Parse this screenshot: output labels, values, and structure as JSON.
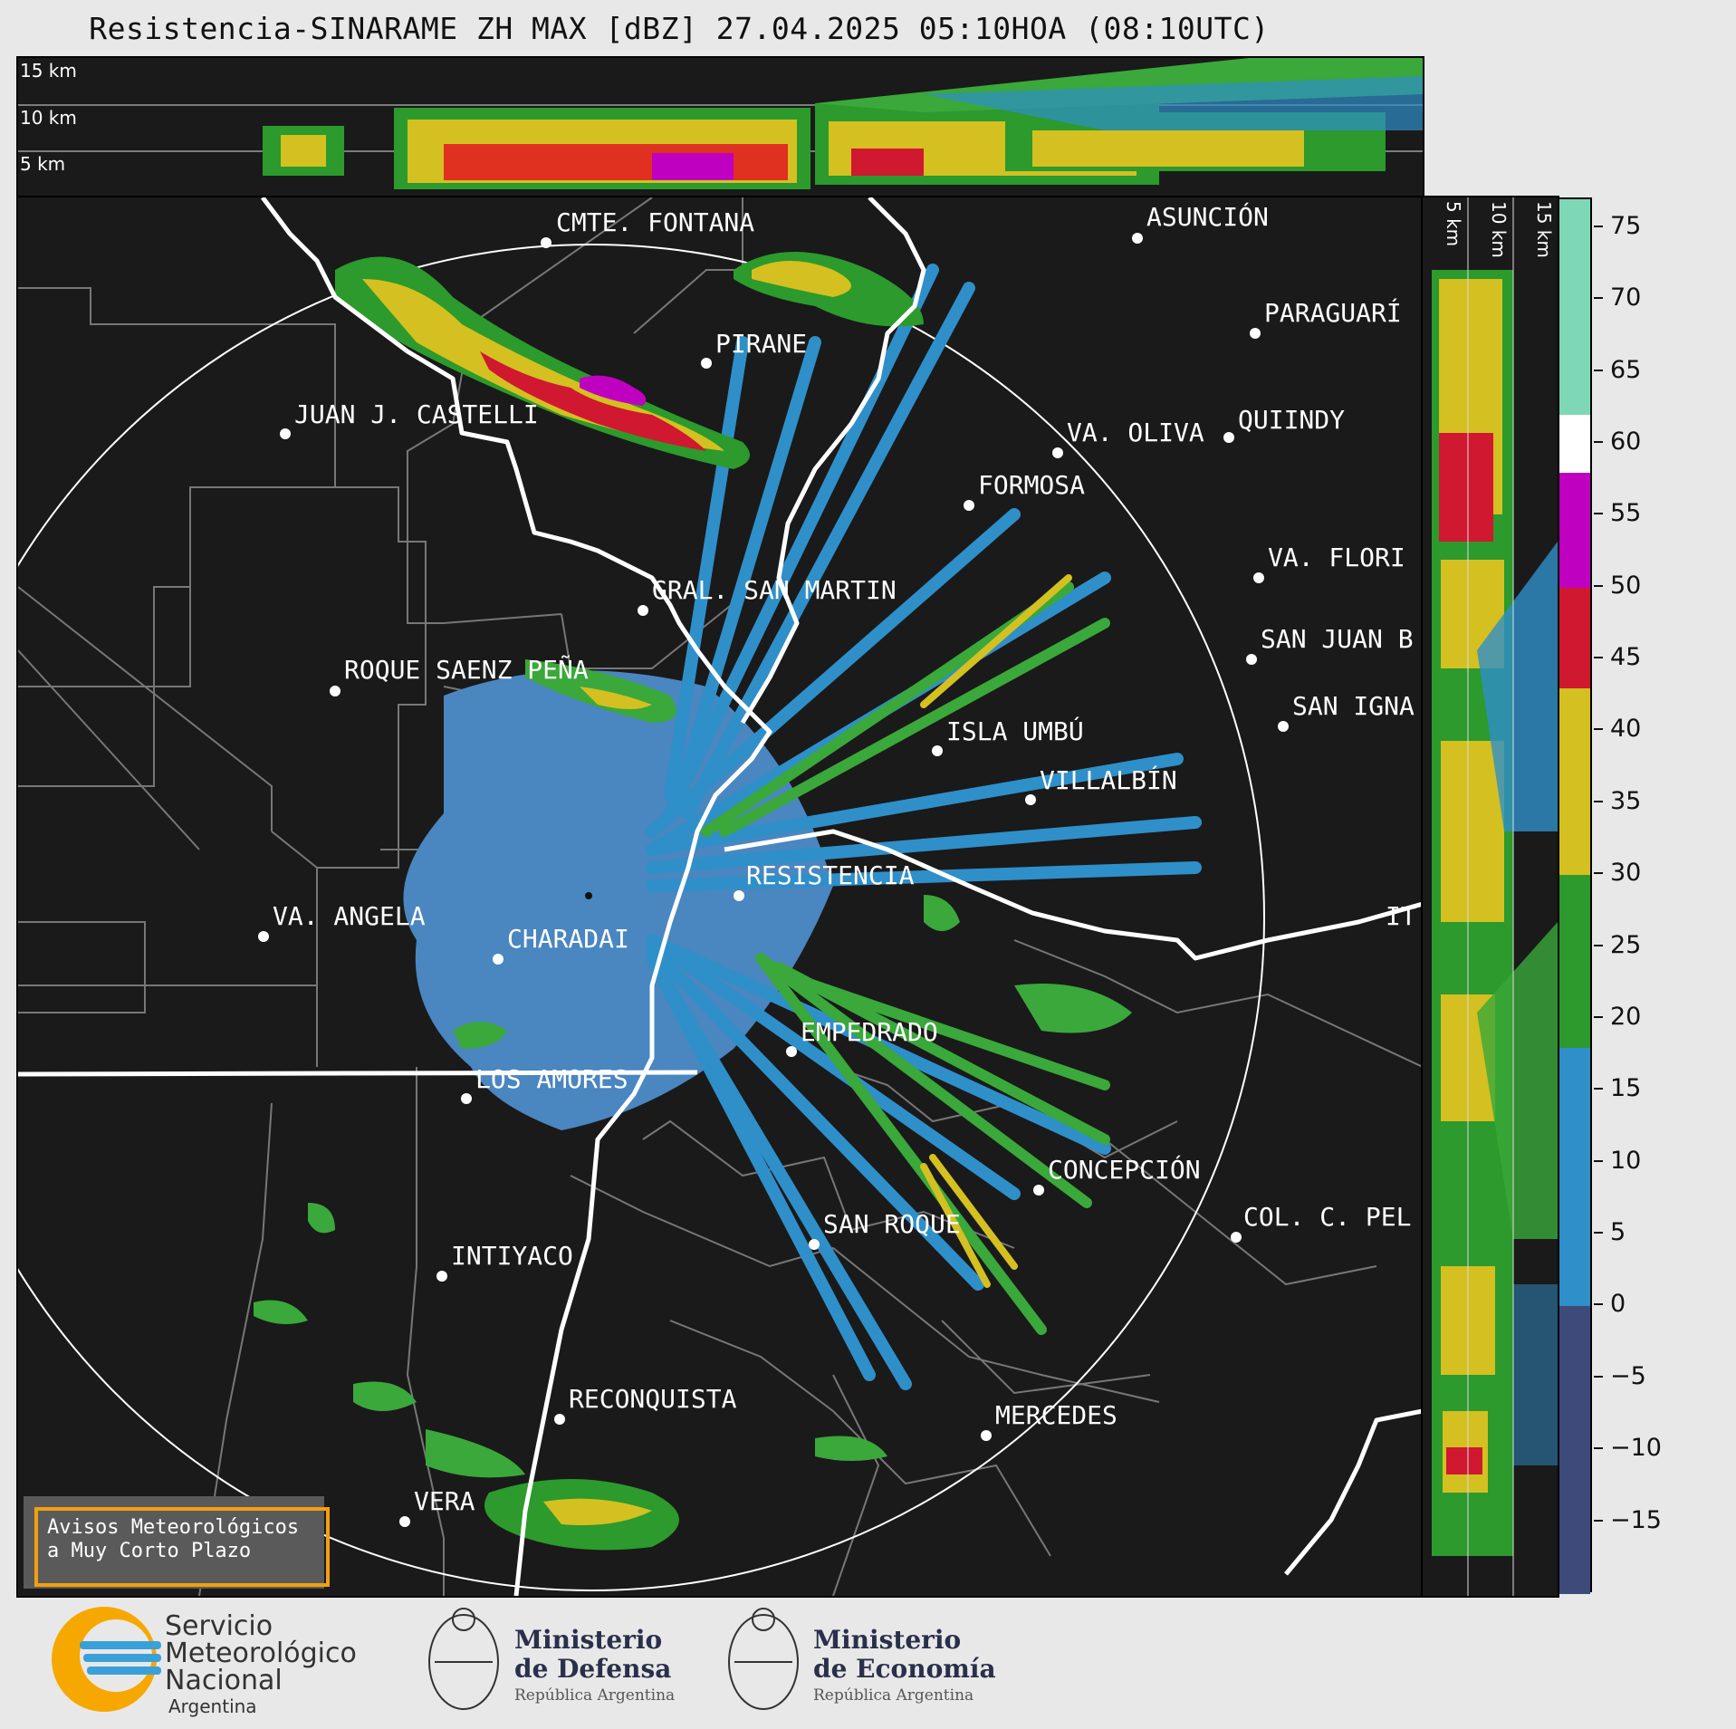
{
  "title": "Resistencia-SINARAME ZH MAX [dBZ] 27.04.2025 05:10HOA (08:10UTC)",
  "altitude_labels": {
    "top": [
      "15 km",
      "10 km",
      "5 km"
    ],
    "right": [
      "5 km",
      "10 km",
      "15 km"
    ]
  },
  "cities": [
    {
      "name": "CMTE. FONTANA"
    },
    {
      "name": "ASUNCIÓN"
    },
    {
      "name": "PARAGUARÍ"
    },
    {
      "name": "PIRANE"
    },
    {
      "name": "JUAN J. CASTELLI"
    },
    {
      "name": "QUIINDY"
    },
    {
      "name": "VA. OLIVA"
    },
    {
      "name": "FORMOSA"
    },
    {
      "name": "VA. FLORI"
    },
    {
      "name": "GRAL. SAN MARTIN"
    },
    {
      "name": "SAN JUAN B"
    },
    {
      "name": "ROQUE SAENZ PEÑA"
    },
    {
      "name": "SAN IGNA"
    },
    {
      "name": "ISLA UMBÚ"
    },
    {
      "name": "VILLALBÍN"
    },
    {
      "name": "RESISTENCIA"
    },
    {
      "name": "VA. ANGELA"
    },
    {
      "name": "CHARADAI"
    },
    {
      "name": "IT"
    },
    {
      "name": "EMPEDRADO"
    },
    {
      "name": "LOS AMORES"
    },
    {
      "name": "CONCEPCIÓN"
    },
    {
      "name": "COL. C. PEL"
    },
    {
      "name": "SAN ROQUE"
    },
    {
      "name": "INTIYACO"
    },
    {
      "name": "RECONQUISTA"
    },
    {
      "name": "MERCEDES"
    },
    {
      "name": "VERA"
    }
  ],
  "colorbar": {
    "unit": "dBZ",
    "range": [
      -20,
      77
    ],
    "ticks": [
      "75",
      "70",
      "65",
      "60",
      "55",
      "50",
      "45",
      "40",
      "35",
      "30",
      "25",
      "20",
      "15",
      "10",
      "5",
      "0",
      "−5",
      "−10",
      "−15"
    ],
    "tick_values": [
      75,
      70,
      65,
      60,
      55,
      50,
      45,
      40,
      35,
      30,
      25,
      20,
      15,
      10,
      5,
      0,
      -5,
      -10,
      -15
    ],
    "bands": [
      {
        "from": -20,
        "to": 0,
        "color": "#3d4a7a"
      },
      {
        "from": 0,
        "to": 18,
        "color": "#2f8fc9"
      },
      {
        "from": 18,
        "to": 30,
        "color": "#2c9a2c"
      },
      {
        "from": 30,
        "to": 43,
        "color": "#d4c020"
      },
      {
        "from": 43,
        "to": 50,
        "color": "#d01830"
      },
      {
        "from": 50,
        "to": 58,
        "color": "#c000c0"
      },
      {
        "from": 58,
        "to": 62,
        "color": "#ffffff"
      },
      {
        "from": 62,
        "to": 77,
        "color": "#7ed8b8"
      }
    ]
  },
  "warning_box": {
    "line1": "Avisos Meteorológicos",
    "line2": "a Muy Corto Plazo"
  },
  "logos": {
    "smn": {
      "line1": "Servicio",
      "line2": "Meteorológico",
      "line3": "Nacional",
      "line4": "Argentina"
    },
    "defensa": {
      "line1": "Ministerio",
      "line2": "de Defensa",
      "sub": "República Argentina"
    },
    "economia": {
      "line1": "Ministerio",
      "line2": "de Economía",
      "sub": "República Argentina"
    }
  }
}
